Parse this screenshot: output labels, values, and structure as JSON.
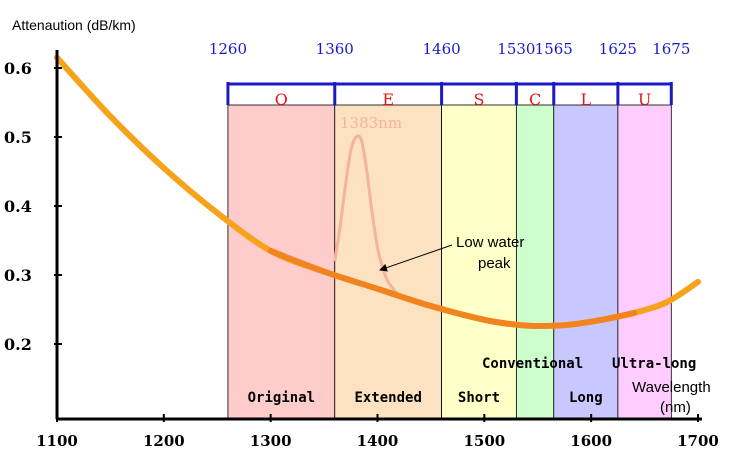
{
  "chart_data": {
    "type": "line",
    "ylabel": "Attenaution (dB/km)",
    "xlabel_line1": "Wavelength",
    "xlabel_line2": "(nm)",
    "xlim": [
      1100,
      1700
    ],
    "ylim": [
      0.1,
      0.63
    ],
    "x_ticks": [
      1100,
      1200,
      1300,
      1400,
      1500,
      1600,
      1700
    ],
    "y_ticks": [
      0.2,
      0.3,
      0.4,
      0.5,
      0.6
    ],
    "y_tick_labels": [
      "0.2",
      "0.3",
      "0.4",
      "0.5",
      "0.6"
    ],
    "grid": false,
    "series": [
      {
        "color": "#f7a21b",
        "x": [
          1100,
          1150,
          1200,
          1250,
          1300,
          1350,
          1400,
          1450,
          1500,
          1530,
          1550,
          1580,
          1610,
          1640,
          1670,
          1700
        ],
        "y": [
          0.615,
          0.53,
          0.455,
          0.39,
          0.335,
          0.305,
          0.28,
          0.255,
          0.235,
          0.228,
          0.226,
          0.228,
          0.235,
          0.245,
          0.26,
          0.29
        ]
      },
      {
        "color": "#f3b39c",
        "x": [
          1360,
          1365,
          1370,
          1375,
          1380,
          1385,
          1390,
          1395,
          1400,
          1405,
          1410,
          1420
        ],
        "y": [
          0.32,
          0.37,
          0.43,
          0.48,
          0.5,
          0.495,
          0.45,
          0.39,
          0.34,
          0.31,
          0.29,
          0.27
        ]
      }
    ],
    "bands": [
      {
        "letter": "O",
        "name": "Original",
        "start": 1260,
        "end": 1360,
        "color": "#ffcccc"
      },
      {
        "letter": "E",
        "name": "Extended",
        "start": 1360,
        "end": 1460,
        "color": "#fde2c2"
      },
      {
        "letter": "S",
        "name": "Short",
        "start": 1460,
        "end": 1530,
        "color": "#ffffc8"
      },
      {
        "letter": "C",
        "name": "Conventional",
        "start": 1530,
        "end": 1565,
        "color": "#ccffcc"
      },
      {
        "letter": "L",
        "name": "Long",
        "start": 1565,
        "end": 1625,
        "color": "#c8c8ff"
      },
      {
        "letter": "U",
        "name": "Ultra-long",
        "start": 1625,
        "end": 1675,
        "color": "#ffccff"
      }
    ],
    "band_boundary_labels": [
      "1260",
      "1360",
      "1460",
      "1530",
      "1565",
      "1625",
      "1675"
    ],
    "annotations": {
      "peak_label": "1383nm",
      "water_peak_line1": "Low water",
      "water_peak_line2": "peak"
    }
  }
}
